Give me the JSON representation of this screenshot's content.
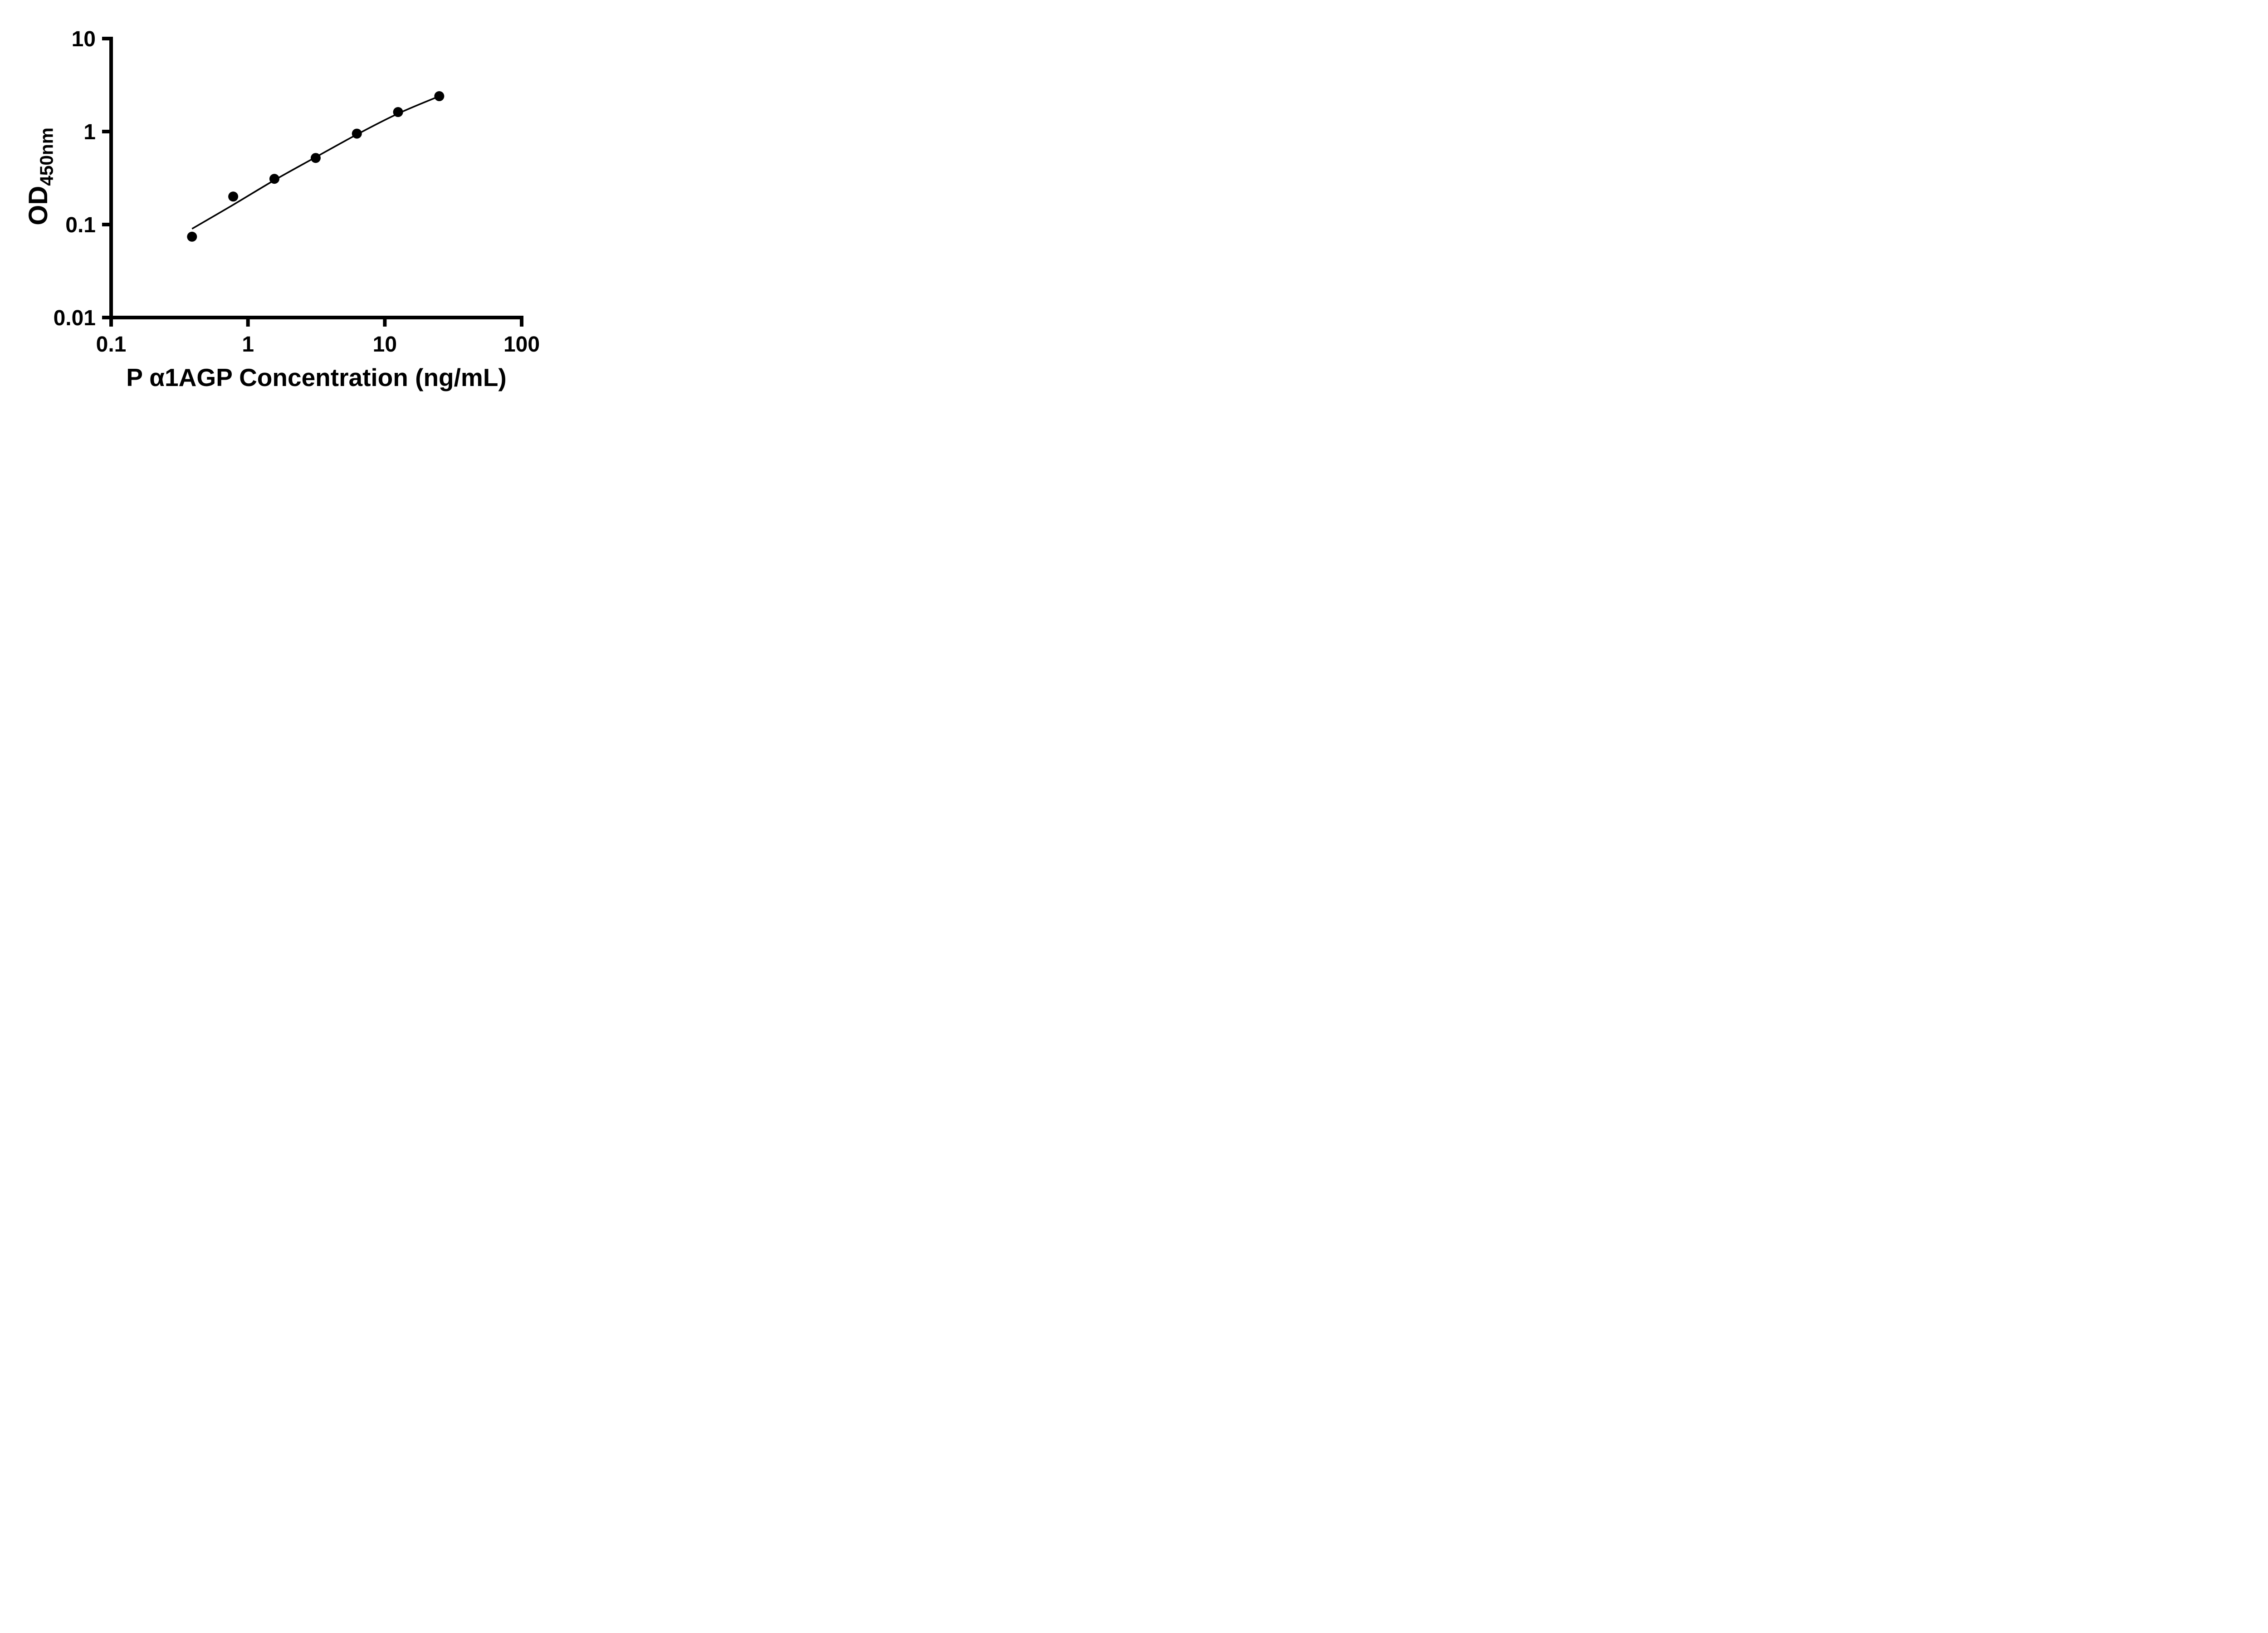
{
  "chart_data": {
    "type": "scatter",
    "title": "",
    "xlabel": "P α1AGP Concentration (ng/mL)",
    "ylabel": "OD",
    "ylabel_subscript": "450nm",
    "x_scale": "log",
    "y_scale": "log",
    "xlim": [
      0.1,
      100
    ],
    "ylim": [
      0.01,
      10
    ],
    "x_ticks": [
      0.1,
      1,
      10,
      100
    ],
    "x_tick_labels": [
      "0.1",
      "1",
      "10",
      "100"
    ],
    "y_ticks": [
      0.01,
      0.1,
      1,
      10
    ],
    "y_tick_labels": [
      "0.01",
      "0.1",
      "1",
      "10"
    ],
    "grid": false,
    "legend": null,
    "axis_color": "#000000",
    "text_color": "#000000",
    "point_color": "#000000",
    "curve_color": "#000000",
    "points": [
      {
        "x": 0.39,
        "y": 0.074
      },
      {
        "x": 0.78,
        "y": 0.2
      },
      {
        "x": 1.56,
        "y": 0.31
      },
      {
        "x": 3.125,
        "y": 0.52
      },
      {
        "x": 6.25,
        "y": 0.95
      },
      {
        "x": 12.5,
        "y": 1.62
      },
      {
        "x": 25,
        "y": 2.4
      }
    ],
    "curve_points": [
      {
        "x": 0.39,
        "y": 0.09
      },
      {
        "x": 0.78,
        "y": 0.163
      },
      {
        "x": 1.56,
        "y": 0.3
      },
      {
        "x": 3.125,
        "y": 0.53
      },
      {
        "x": 6.25,
        "y": 0.93
      },
      {
        "x": 12.5,
        "y": 1.56
      },
      {
        "x": 25,
        "y": 2.4
      }
    ]
  }
}
